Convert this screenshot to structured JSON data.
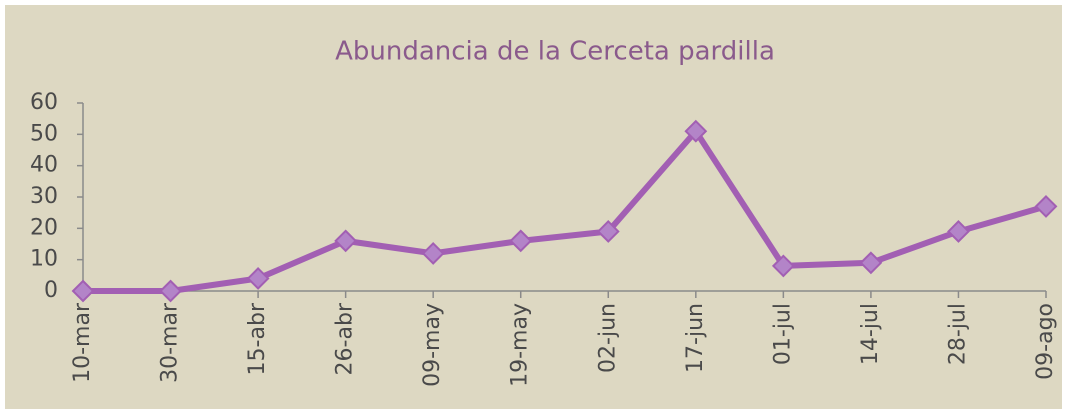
{
  "chart_data": {
    "type": "line",
    "title": "Abundancia de la Cerceta pardilla",
    "categories": [
      "10-mar",
      "30-mar",
      "15-abr",
      "26-abr",
      "09-may",
      "19-may",
      "02-jun",
      "17-jun",
      "01-jul",
      "14-jul",
      "28-jul",
      "09-ago"
    ],
    "values": [
      0,
      0,
      4,
      16,
      12,
      16,
      19,
      51,
      8,
      9,
      19,
      27
    ],
    "color": "#a25fb3",
    "marker_color": "#b384c8",
    "ylim": [
      0,
      60
    ],
    "yticks": [
      0,
      10,
      20,
      30,
      40,
      50,
      60
    ],
    "grid": false
  }
}
